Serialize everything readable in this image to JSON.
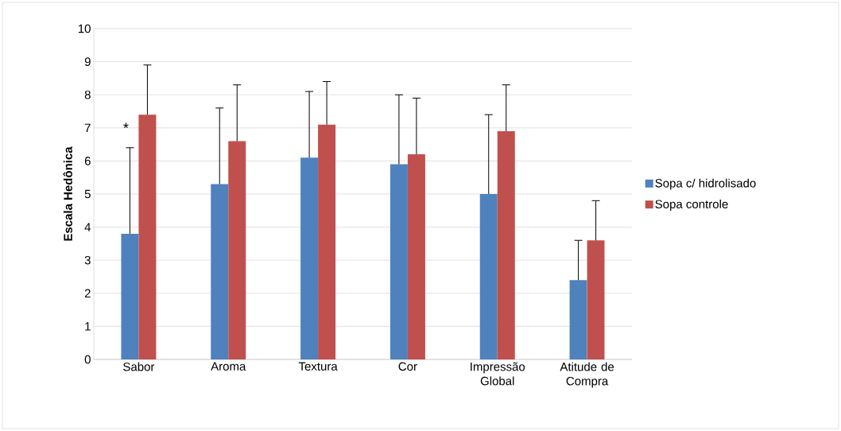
{
  "chart_data": {
    "type": "bar",
    "ylabel": "Escala Hedônica",
    "categories": [
      "Sabor",
      "Aroma",
      "Textura",
      "Cor",
      "Impressão Global",
      "Atitude de Compra"
    ],
    "series": [
      {
        "name": "Sopa c/ hidrolisado",
        "color": "#4f81bd",
        "values": [
          3.8,
          5.3,
          6.1,
          5.9,
          5.0,
          2.4
        ],
        "errors": [
          [
            3.8,
            6.4
          ],
          [
            5.3,
            7.6
          ],
          [
            6.1,
            8.1
          ],
          [
            5.9,
            8.0
          ],
          [
            5.0,
            7.4
          ],
          [
            2.4,
            3.6
          ]
        ]
      },
      {
        "name": "Sopa controle",
        "color": "#c0504d",
        "values": [
          7.4,
          6.6,
          7.1,
          6.2,
          6.9,
          3.6
        ],
        "errors": [
          [
            7.4,
            8.9
          ],
          [
            6.6,
            8.3
          ],
          [
            7.1,
            8.4
          ],
          [
            6.2,
            7.9
          ],
          [
            6.9,
            8.3
          ],
          [
            3.6,
            4.8
          ]
        ]
      }
    ],
    "ylim": [
      0,
      10
    ],
    "yticks": [
      0,
      1,
      2,
      3,
      4,
      5,
      6,
      7,
      8,
      9,
      10
    ],
    "grid": "y",
    "legend": "right",
    "annotations": [
      {
        "text": "*",
        "x": "Sabor",
        "y": 7.0
      }
    ]
  }
}
